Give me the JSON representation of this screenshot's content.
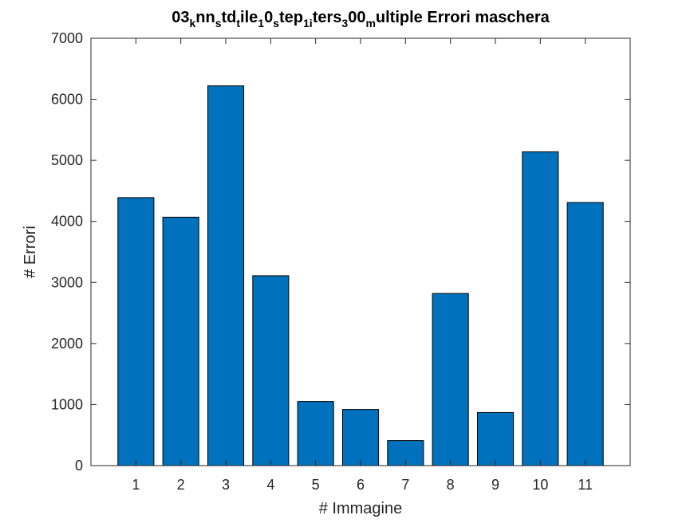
{
  "chart_data": {
    "type": "bar",
    "title_segments": [
      {
        "text": "03",
        "sub": false
      },
      {
        "text": "k",
        "sub": true
      },
      {
        "text": "nn",
        "sub": false
      },
      {
        "text": "s",
        "sub": true
      },
      {
        "text": "td",
        "sub": false
      },
      {
        "text": "t",
        "sub": true
      },
      {
        "text": "ile",
        "sub": false
      },
      {
        "text": "1",
        "sub": true
      },
      {
        "text": "0",
        "sub": false
      },
      {
        "text": "s",
        "sub": true
      },
      {
        "text": "tep",
        "sub": false
      },
      {
        "text": "1i",
        "sub": true
      },
      {
        "text": "ters",
        "sub": false
      },
      {
        "text": "3",
        "sub": true
      },
      {
        "text": "00",
        "sub": false
      },
      {
        "text": "m",
        "sub": true
      },
      {
        "text": "ultiple Errori maschera",
        "sub": false
      }
    ],
    "xlabel": "# Immagine",
    "ylabel": "# Errori",
    "categories": [
      "1",
      "2",
      "3",
      "4",
      "5",
      "6",
      "7",
      "8",
      "9",
      "10",
      "11"
    ],
    "values": [
      4390,
      4070,
      6220,
      3110,
      1050,
      920,
      410,
      2820,
      870,
      5140,
      4310
    ],
    "ylim": [
      0,
      7000
    ],
    "yticks": [
      0,
      1000,
      2000,
      3000,
      4000,
      5000,
      6000,
      7000
    ],
    "bar_color": "#0072bd",
    "grid": false,
    "legend": "none"
  }
}
